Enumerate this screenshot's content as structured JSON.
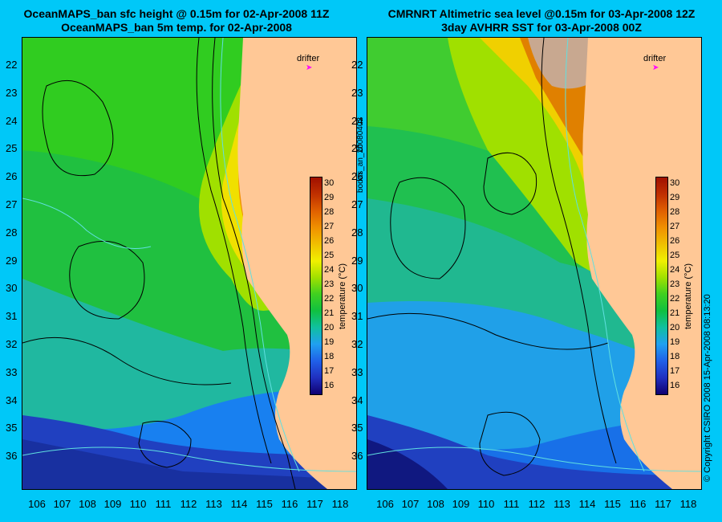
{
  "left_panel": {
    "title_line1": "OceanMAPS_ban sfc height @ 0.15m for 02-Apr-2008 11Z",
    "title_line2": "OceanMAPS_ban 5m temp. for 02-Apr-2008",
    "drifter_label": "drifter",
    "colorbar_label": "temperature (°C)"
  },
  "right_panel": {
    "title_line1": "CMRNRT Altimetric sea level  @0.15m  for 03-Apr-2008 12Z",
    "title_line2": "3day AVHRR SST for 03-Apr-2008 00Z",
    "drifter_label": "drifter",
    "colorbar_label": "temperature (°C)"
  },
  "side_text": {
    "analysis_id": "bodas_an_20080402",
    "copyright": "© Copyright CSIRO 2008  15-Apr-2008 08:13:20"
  },
  "axes": {
    "latitude_ticks": [
      "22",
      "23",
      "24",
      "25",
      "26",
      "27",
      "28",
      "29",
      "30",
      "31",
      "32",
      "33",
      "34",
      "35",
      "36"
    ],
    "longitude_ticks": [
      "106",
      "107",
      "108",
      "109",
      "110",
      "111",
      "112",
      "113",
      "114",
      "115",
      "116",
      "117",
      "118"
    ]
  },
  "colorbar": {
    "ticks": [
      "30",
      "29",
      "28",
      "27",
      "26",
      "25",
      "24",
      "23",
      "22",
      "21",
      "20",
      "19",
      "18",
      "17",
      "16"
    ],
    "range": [
      15.5,
      30.5
    ],
    "colors": [
      "#100070",
      "#2030c0",
      "#2060e8",
      "#20a0f0",
      "#10c0a0",
      "#10c040",
      "#40d020",
      "#a0e000",
      "#f0f000",
      "#f0c000",
      "#f09000",
      "#e06000",
      "#c03000",
      "#a01000"
    ]
  },
  "colors": {
    "background": "#00c8f8",
    "land": "#ffc896",
    "drifter_marker": "#ff00ff"
  }
}
